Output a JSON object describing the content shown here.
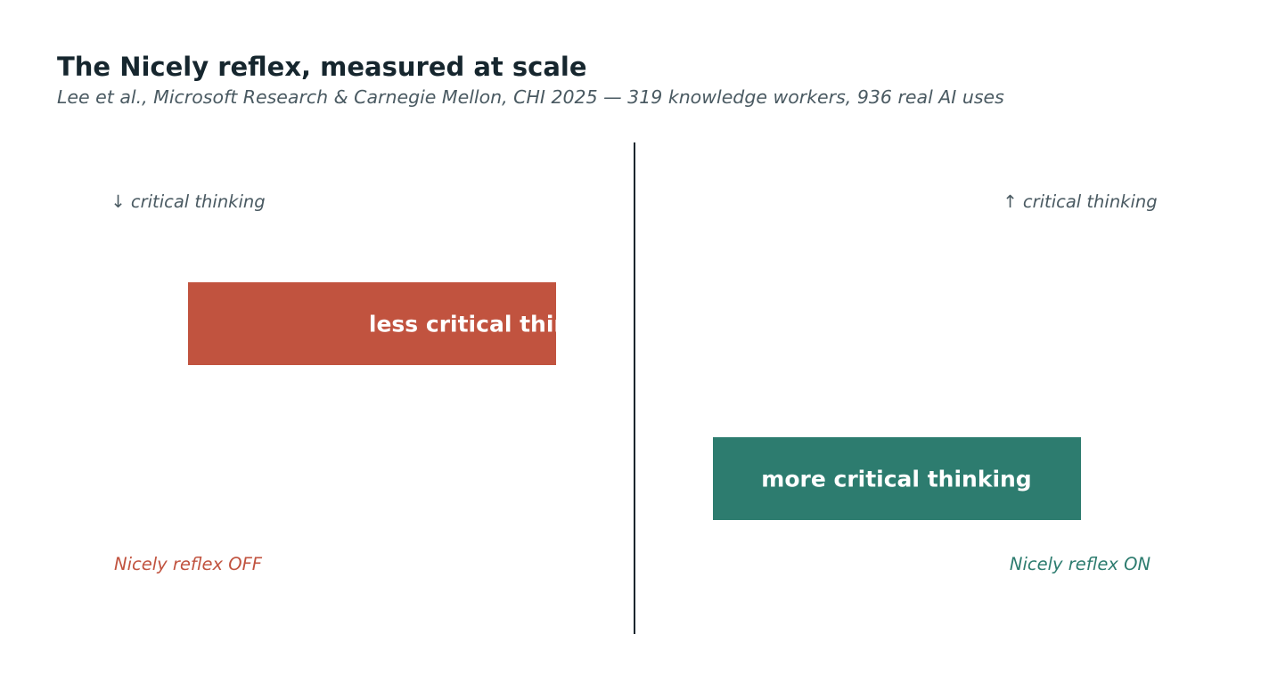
{
  "chart_data": {
    "type": "bar",
    "title": "The Nicely reflex, measured at scale",
    "subtitle": "Lee et al., Microsoft Research & Carnegie Mellon, CHI 2025 — 319 knowledge workers, 936 real AI uses",
    "axis": {
      "left_label": "↓ critical thinking",
      "right_label": "↑ critical thinking"
    },
    "bars": [
      {
        "label": "less critical thinking",
        "direction": "left",
        "color": "#c1533f"
      },
      {
        "label": "more critical thinking",
        "direction": "right",
        "color": "#2d7c6f"
      }
    ],
    "legend": [
      {
        "label": "Nicely reflex OFF",
        "color": "#c1533f"
      },
      {
        "label": "Nicely reflex ON",
        "color": "#2d7c6f"
      }
    ]
  }
}
